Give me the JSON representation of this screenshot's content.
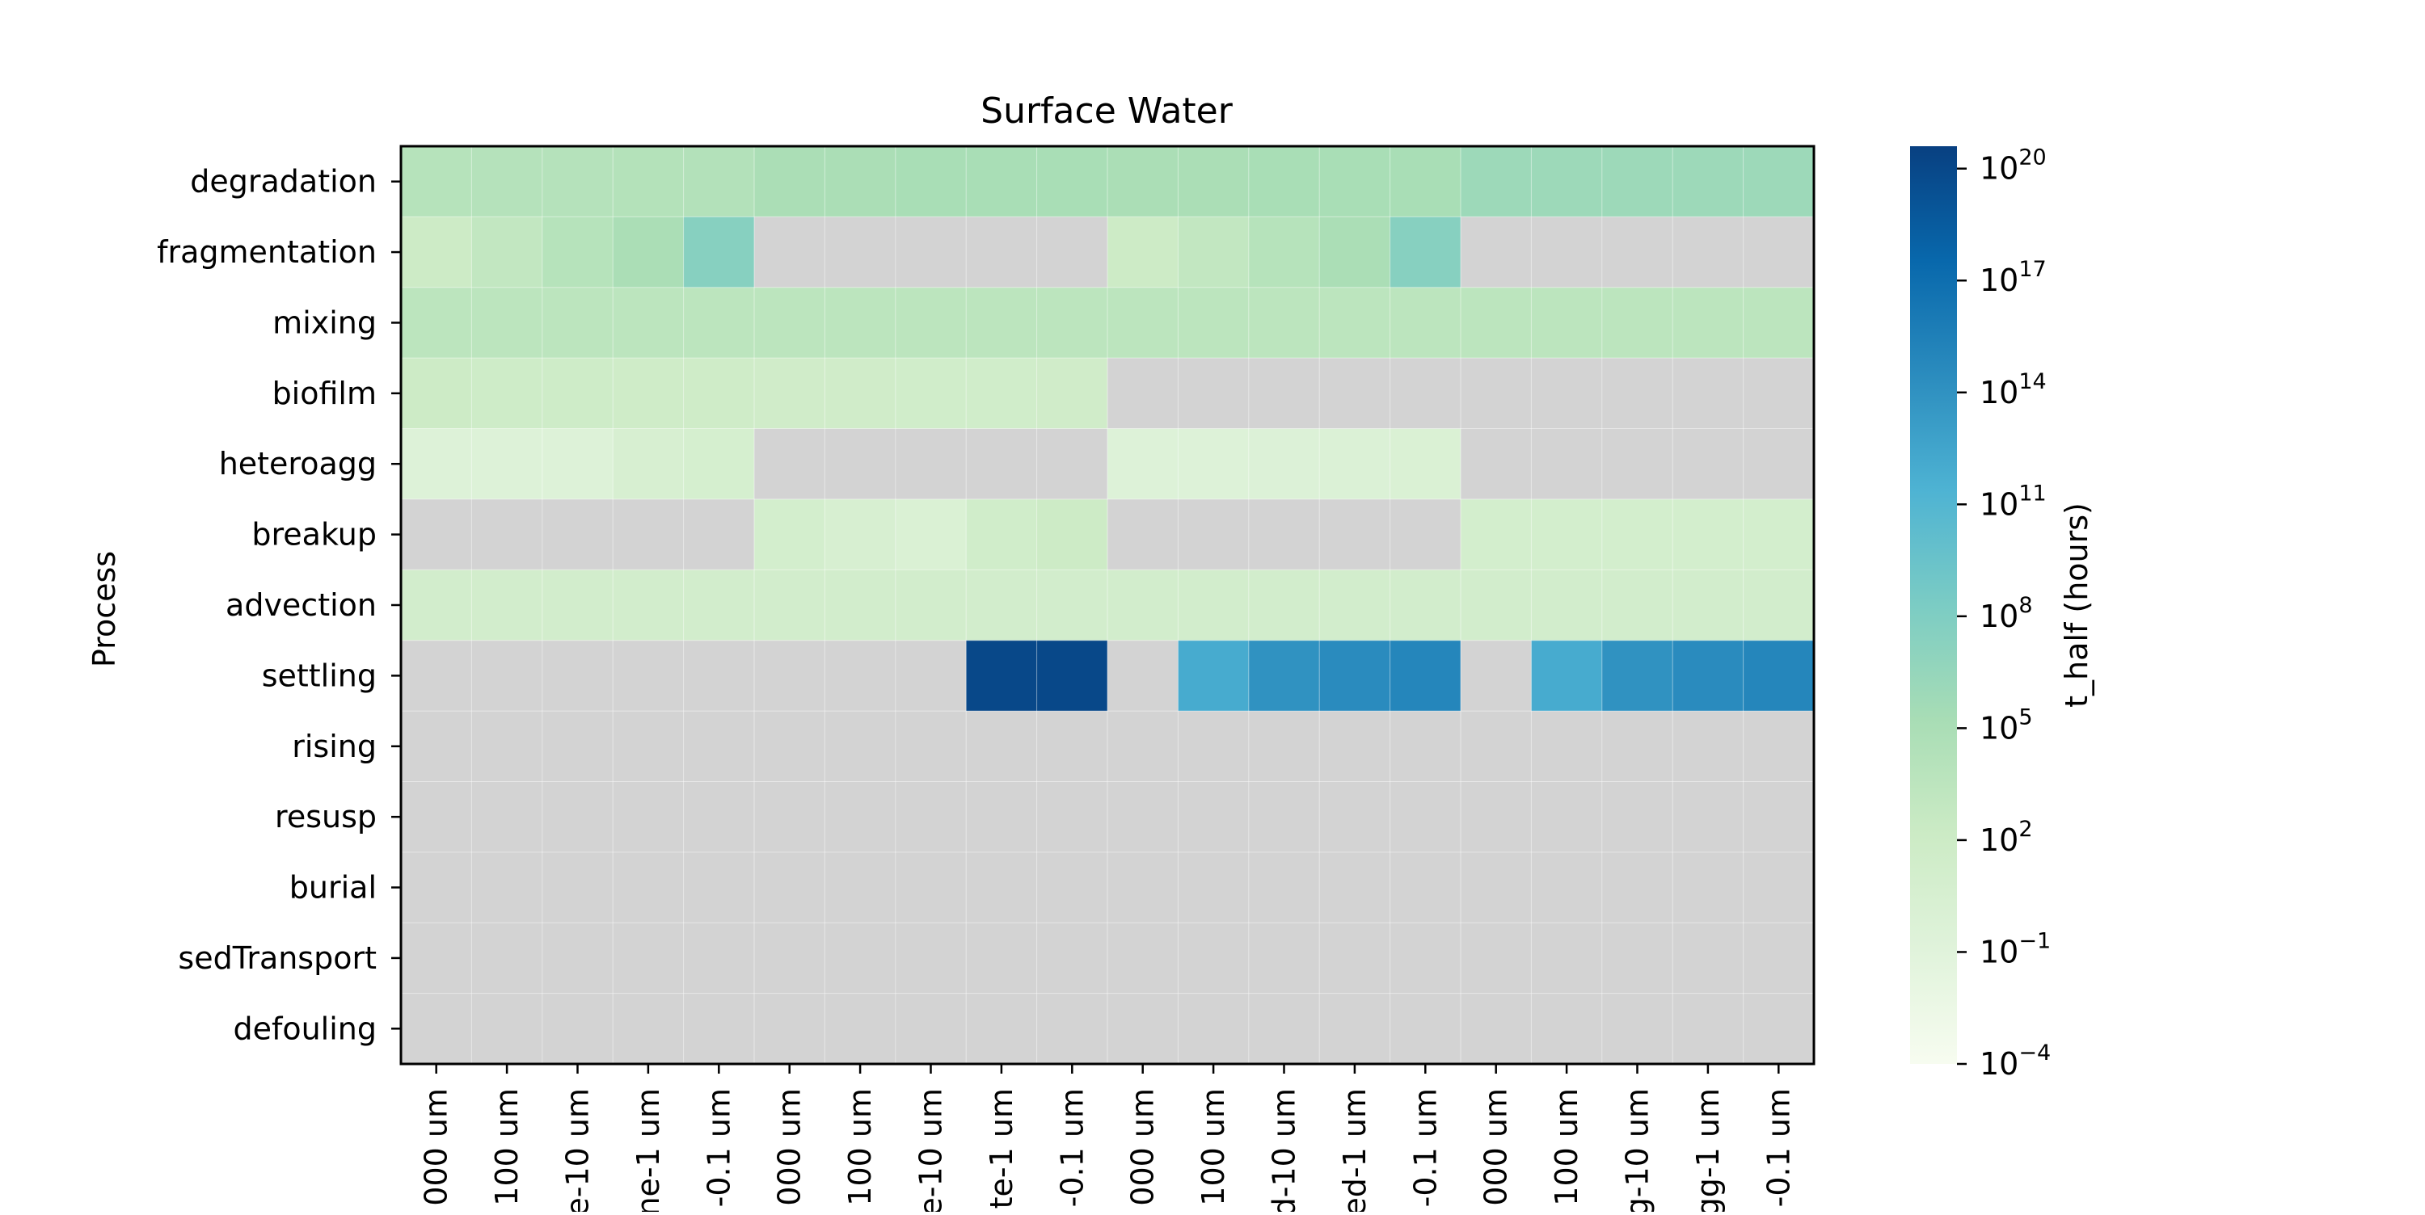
{
  "chart_data": {
    "type": "heatmap",
    "title": "Surface Water",
    "ylabel": "Process",
    "xlabel": "",
    "rows": [
      "degradation",
      "fragmentation",
      "mixing",
      "biofilm",
      "heteroagg",
      "breakup",
      "advection",
      "settling",
      "rising",
      "resusp",
      "burial",
      "sedTransport",
      "defouling"
    ],
    "columns": [
      "000 um",
      "100 um",
      "e-10 um",
      "ne-1 um",
      "-0.1 um",
      "000 um",
      "100 um",
      "e-10 um",
      "te-1 um",
      "-0.1 um",
      "000 um",
      "100 um",
      "d-10 um",
      "ed-1 um",
      "-0.1 um",
      "000 um",
      "100 um",
      "g-10 um",
      "gg-1 um",
      "-0.1 um"
    ],
    "log10_values": [
      [
        4.0,
        4.1,
        4.1,
        4.2,
        4.3,
        5.0,
        5.0,
        5.1,
        5.1,
        5.1,
        5.0,
        5.0,
        5.1,
        5.1,
        5.1,
        6.0,
        6.0,
        6.0,
        6.0,
        6.0
      ],
      [
        2.0,
        3.0,
        4.0,
        5.0,
        7.5,
        null,
        null,
        null,
        null,
        null,
        2.0,
        3.0,
        4.0,
        5.0,
        7.5,
        null,
        null,
        null,
        null,
        null
      ],
      [
        3.5,
        3.5,
        3.5,
        3.5,
        3.5,
        3.5,
        3.5,
        3.5,
        3.5,
        3.5,
        3.5,
        3.5,
        3.5,
        3.5,
        3.5,
        3.5,
        3.5,
        3.5,
        3.5,
        3.5
      ],
      [
        2.0,
        1.8,
        1.8,
        1.7,
        1.7,
        1.6,
        1.6,
        1.5,
        1.5,
        1.6,
        null,
        null,
        null,
        null,
        null,
        null,
        null,
        null,
        null,
        null
      ],
      [
        -0.5,
        -0.5,
        -0.5,
        0.5,
        0.8,
        null,
        null,
        null,
        null,
        null,
        -0.5,
        -0.5,
        -0.3,
        -0.2,
        0.0,
        null,
        null,
        null,
        null,
        null
      ],
      [
        null,
        null,
        null,
        null,
        null,
        1.0,
        0.5,
        0.0,
        1.5,
        2.0,
        null,
        null,
        null,
        null,
        null,
        1.0,
        1.0,
        1.0,
        1.0,
        1.0
      ],
      [
        1.2,
        1.2,
        1.2,
        1.2,
        1.2,
        1.2,
        1.2,
        1.2,
        1.2,
        1.2,
        1.2,
        1.2,
        1.2,
        1.2,
        1.2,
        1.2,
        1.2,
        1.2,
        1.2,
        1.2
      ],
      [
        null,
        null,
        null,
        null,
        null,
        null,
        null,
        null,
        20.0,
        20.0,
        null,
        12.0,
        14.0,
        14.5,
        15.0,
        null,
        12.0,
        14.0,
        14.5,
        15.0
      ],
      [
        null,
        null,
        null,
        null,
        null,
        null,
        null,
        null,
        null,
        null,
        null,
        null,
        null,
        null,
        null,
        null,
        null,
        null,
        null,
        null
      ],
      [
        null,
        null,
        null,
        null,
        null,
        null,
        null,
        null,
        null,
        null,
        null,
        null,
        null,
        null,
        null,
        null,
        null,
        null,
        null,
        null
      ],
      [
        null,
        null,
        null,
        null,
        null,
        null,
        null,
        null,
        null,
        null,
        null,
        null,
        null,
        null,
        null,
        null,
        null,
        null,
        null,
        null
      ],
      [
        null,
        null,
        null,
        null,
        null,
        null,
        null,
        null,
        null,
        null,
        null,
        null,
        null,
        null,
        null,
        null,
        null,
        null,
        null,
        null
      ],
      [
        null,
        null,
        null,
        null,
        null,
        null,
        null,
        null,
        null,
        null,
        null,
        null,
        null,
        null,
        null,
        null,
        null,
        null,
        null,
        null
      ]
    ],
    "missing_color": "#d3d3d3",
    "colormap": "GnBu",
    "colorbar": {
      "label": "t_half (hours)",
      "scale": "log",
      "range_log10": [
        -4,
        20.6
      ],
      "ticks": [
        {
          "exp": 20,
          "base": "10",
          "sup": "20"
        },
        {
          "exp": 17,
          "base": "10",
          "sup": "17"
        },
        {
          "exp": 14,
          "base": "10",
          "sup": "14"
        },
        {
          "exp": 11,
          "base": "10",
          "sup": "11"
        },
        {
          "exp": 8,
          "base": "10",
          "sup": "8"
        },
        {
          "exp": 5,
          "base": "10",
          "sup": "5"
        },
        {
          "exp": 2,
          "base": "10",
          "sup": "2"
        },
        {
          "exp": -1,
          "base": "10",
          "sup": "−1"
        },
        {
          "exp": -4,
          "base": "10",
          "sup": "−4"
        }
      ]
    }
  }
}
